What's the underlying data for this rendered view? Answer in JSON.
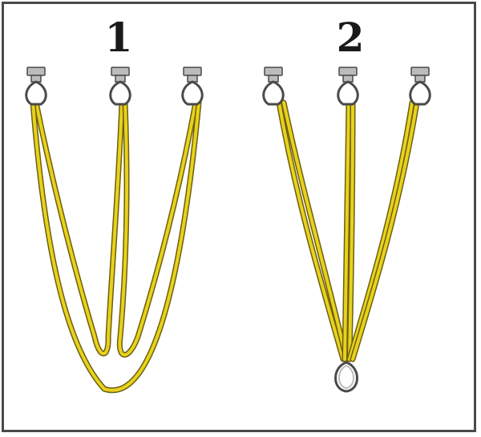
{
  "panels": [
    {
      "label": "1"
    },
    {
      "label": "2"
    }
  ],
  "colors": {
    "rope_fill": "#e8d21c",
    "rope_edge": "#6b5f10",
    "hardware": "#bcbcbc",
    "hardware_edge": "#4a4a4a",
    "frame": "#4a4a4a"
  }
}
